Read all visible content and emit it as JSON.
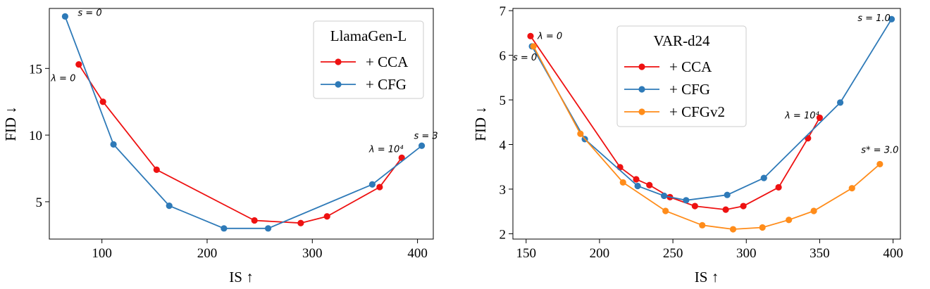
{
  "chart_data": [
    {
      "type": "line",
      "legend_title": "LlamaGen-L",
      "legend_position": "top-right",
      "xlabel": "IS ↑",
      "ylabel": "FID ↓",
      "xlim": [
        50,
        415
      ],
      "ylim": [
        2.2,
        19.5
      ],
      "xticks": [
        100,
        200,
        300,
        400
      ],
      "yticks": [
        5,
        10,
        15
      ],
      "grid": false,
      "series": [
        {
          "name": "+ CCA",
          "color": "#ee1111",
          "points": [
            [
              78,
              15.3
            ],
            [
              101,
              12.5
            ],
            [
              152,
              7.4
            ],
            [
              245,
              3.6
            ],
            [
              289,
              3.4
            ],
            [
              314,
              3.9
            ],
            [
              364,
              6.1
            ],
            [
              385,
              8.3
            ]
          ]
        },
        {
          "name": "+ CFG",
          "color": "#2e7ab8",
          "points": [
            [
              65,
              18.9
            ],
            [
              111,
              9.3
            ],
            [
              164,
              4.7
            ],
            [
              216,
              3.0
            ],
            [
              258,
              3.0
            ],
            [
              357,
              6.3
            ],
            [
              404,
              9.2
            ]
          ]
        }
      ],
      "annotations": [
        {
          "text": "s = 0",
          "x": 65,
          "y": 18.9
        },
        {
          "text": "λ = 0",
          "x": 78,
          "y": 15.3
        },
        {
          "text": "λ = 10⁴",
          "x": 385,
          "y": 8.3
        },
        {
          "text": "s = 3",
          "x": 404,
          "y": 9.2
        }
      ]
    },
    {
      "type": "line",
      "legend_title": "VAR-d24",
      "legend_position": "top-left",
      "xlabel": "IS ↑",
      "ylabel": "FID ↓",
      "xlim": [
        141,
        405
      ],
      "ylim": [
        1.88,
        7.05
      ],
      "xticks": [
        150,
        200,
        250,
        300,
        350,
        400
      ],
      "yticks": [
        2,
        3,
        4,
        5,
        6,
        7
      ],
      "grid": false,
      "series": [
        {
          "name": "+ CCA",
          "color": "#ee1111",
          "points": [
            [
              153,
              6.43
            ],
            [
              214,
              3.49
            ],
            [
              225,
              3.22
            ],
            [
              234,
              3.09
            ],
            [
              248,
              2.82
            ],
            [
              265,
              2.62
            ],
            [
              286,
              2.54
            ],
            [
              298,
              2.62
            ],
            [
              322,
              3.04
            ],
            [
              342,
              4.14
            ],
            [
              350,
              4.6
            ]
          ]
        },
        {
          "name": "+ CFG",
          "color": "#2e7ab8",
          "points": [
            [
              154,
              6.2
            ],
            [
              190,
              4.12
            ],
            [
              226,
              3.07
            ],
            [
              244,
              2.85
            ],
            [
              259,
              2.75
            ],
            [
              287,
              2.87
            ],
            [
              312,
              3.25
            ],
            [
              364,
              4.94
            ],
            [
              399,
              6.81
            ]
          ]
        },
        {
          "name": "+ CFGv2",
          "color": "#ff8c1a",
          "points": [
            [
              155,
              6.2
            ],
            [
              187,
              4.24
            ],
            [
              216,
              3.15
            ],
            [
              245,
              2.51
            ],
            [
              270,
              2.19
            ],
            [
              291,
              2.1
            ],
            [
              311,
              2.14
            ],
            [
              329,
              2.31
            ],
            [
              346,
              2.51
            ],
            [
              372,
              3.02
            ],
            [
              391,
              3.56
            ]
          ]
        }
      ],
      "annotations": [
        {
          "text": "λ = 0",
          "x": 153,
          "y": 6.43
        },
        {
          "text": "s = 0",
          "x": 154,
          "y": 6.2
        },
        {
          "text": "s = 1.0",
          "x": 399,
          "y": 6.81
        },
        {
          "text": "λ = 10⁴",
          "x": 350,
          "y": 4.6
        },
        {
          "text": "s* = 3.0",
          "x": 391,
          "y": 3.56
        }
      ]
    }
  ]
}
